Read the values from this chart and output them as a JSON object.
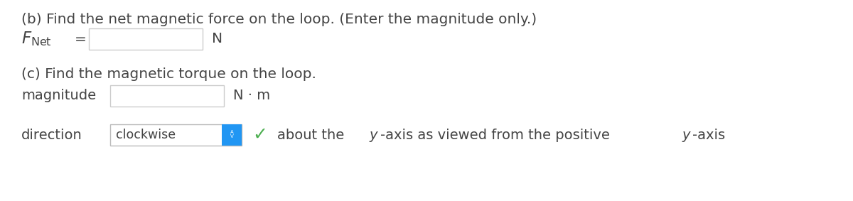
{
  "bg_color": "#ffffff",
  "text_color": "#444444",
  "font_size_main": 14.5,
  "font_size_label": 14,
  "part_b_title": "(b) Find the net magnetic force on the loop. (Enter the magnitude only.)",
  "part_c_title": "(c) Find the magnetic torque on the loop.",
  "fnet_unit": "N",
  "magnitude_label": "magnitude",
  "magnitude_unit": "N · m",
  "direction_label": "direction",
  "dropdown_text": "clockwise",
  "box_fill": "#ffffff",
  "box_edge": "#cccccc",
  "dropdown_fill": "#ffffff",
  "dropdown_edge": "#bbbbbb",
  "dropdown_arrow_color": "#2196f3",
  "check_color": "#4caf50",
  "suffix_parts": [
    {
      "text": "about the ",
      "italic": false
    },
    {
      "text": "y",
      "italic": true
    },
    {
      "text": "-axis as viewed from the positive ",
      "italic": false
    },
    {
      "text": "y",
      "italic": true
    },
    {
      "text": "-axis",
      "italic": false
    }
  ]
}
